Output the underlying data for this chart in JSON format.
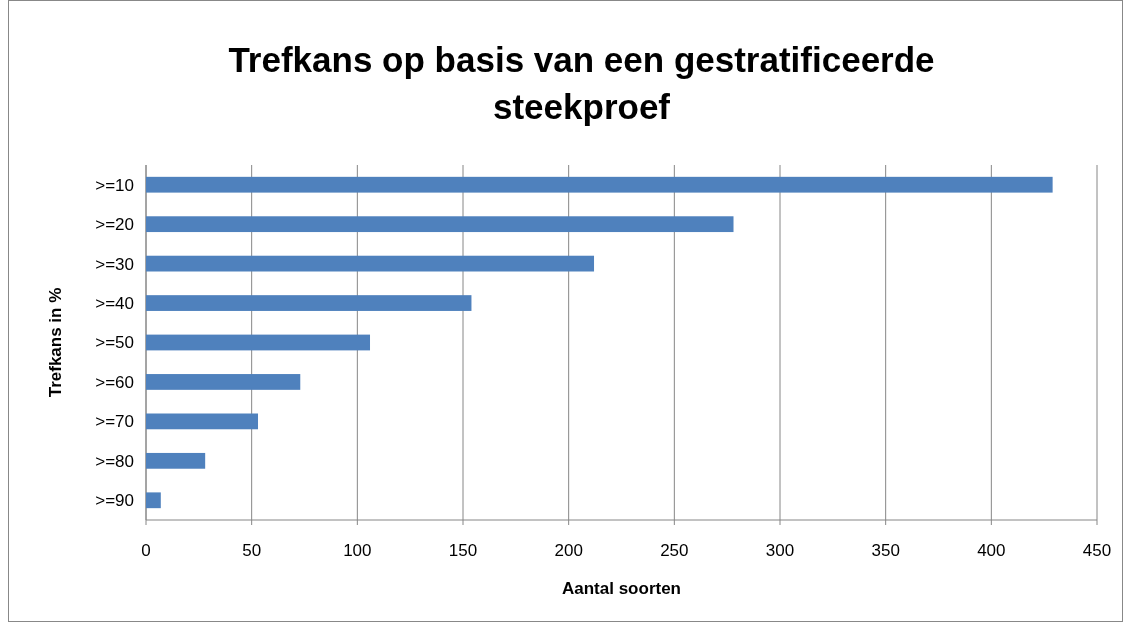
{
  "chart_data": {
    "type": "bar",
    "orientation": "horizontal",
    "title": "Trefkans op basis van een gestratificeerde steekproef",
    "xlabel": "Aantal soorten",
    "ylabel": "Trefkans in %",
    "categories": [
      ">=10",
      ">=20",
      ">=30",
      ">=40",
      ">=50",
      ">=60",
      ">=70",
      ">=80",
      ">=90"
    ],
    "values": [
      429,
      278,
      212,
      154,
      106,
      73,
      53,
      28,
      7
    ],
    "color": "#4f81bd",
    "xlim": [
      0,
      450
    ],
    "xticks": [
      0,
      50,
      100,
      150,
      200,
      250,
      300,
      350,
      400,
      450
    ],
    "grid": "x"
  }
}
